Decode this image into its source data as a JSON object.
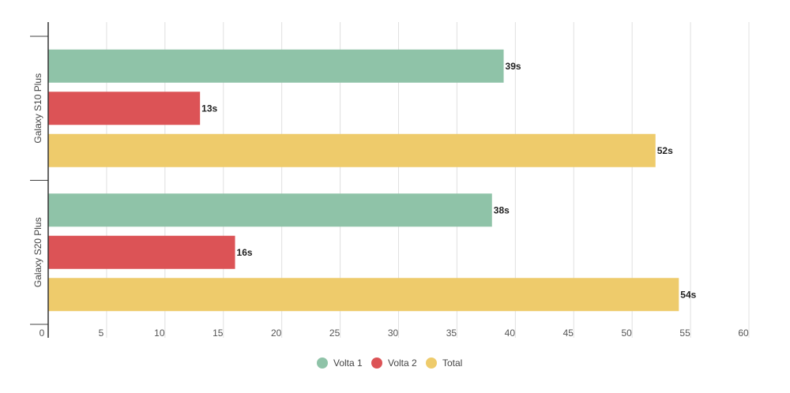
{
  "chart_data": {
    "type": "bar",
    "orientation": "horizontal",
    "title": "",
    "xlabel": "",
    "ylabel": "",
    "categories": [
      "Galaxy S10 Plus",
      "Galaxy S20 Plus"
    ],
    "series": [
      {
        "name": "Volta 1",
        "color": "#8fc3a8",
        "values": [
          39,
          38
        ],
        "labels": [
          "39s",
          "38s"
        ]
      },
      {
        "name": "Volta 2",
        "color": "#dc5356",
        "values": [
          13,
          16
        ],
        "labels": [
          "13s",
          "16s"
        ]
      },
      {
        "name": "Total",
        "color": "#eecb6b",
        "values": [
          52,
          54
        ],
        "labels": [
          "52s",
          "54s"
        ]
      }
    ],
    "xlim": [
      0,
      60
    ],
    "xticks": [
      0,
      5,
      10,
      15,
      20,
      25,
      30,
      35,
      40,
      45,
      50,
      55,
      60
    ],
    "xtick_labels": [
      "0",
      "5",
      "10",
      "15",
      "20",
      "25",
      "30",
      "35",
      "40",
      "45",
      "50",
      "55",
      "60"
    ],
    "grid": true,
    "legend": "bottom-center"
  }
}
